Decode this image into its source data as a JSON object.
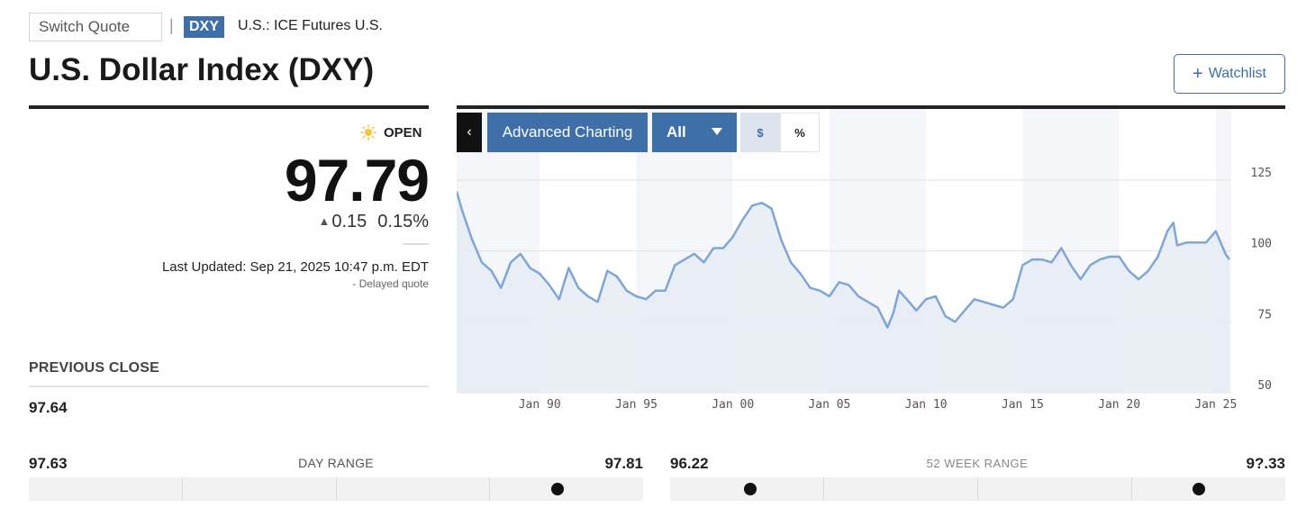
{
  "header": {
    "switch_quote_label": "Switch Quote",
    "separator": "|",
    "ticker": "DXY",
    "exchange": "U.S.: ICE Futures U.S.",
    "title": "U.S. Dollar Index (DXY)",
    "watchlist_plus": "+",
    "watchlist_label": "Watchlist"
  },
  "quote": {
    "market_status": "OPEN",
    "price": "97.79",
    "change": "0.15",
    "change_percent": "0.15%",
    "last_updated": "Last Updated: Sep 21, 2025 10:47 p.m. EDT",
    "delayed": "- Delayed quote",
    "previous_close_label": "PREVIOUS CLOSE",
    "previous_close": "97.64"
  },
  "chart_toolbar": {
    "collapse": "‹",
    "advanced_charting": "Advanced Charting",
    "range": "All",
    "dollar": "$",
    "percent": "%"
  },
  "day_range": {
    "low": "97.63",
    "label": "DAY RANGE",
    "high": "97.81",
    "position": 0.86
  },
  "week52_range": {
    "low": "96.22",
    "label": "52 WEEK RANGE",
    "high": "9?.33",
    "position_low_marker": 0.13,
    "position": 0.86
  },
  "colors": {
    "accent": "#3f6fa8",
    "line": "#7fa6d6",
    "area": "#e6ecf5"
  },
  "icons": {
    "status": "sun-icon",
    "range_caret": "chevron-down-icon"
  },
  "chart_data": {
    "type": "area",
    "x_ticks": [
      "Jan 90",
      "Jan 95",
      "Jan 00",
      "Jan 05",
      "Jan 10",
      "Jan 15",
      "Jan 20",
      "Jan 25"
    ],
    "y_ticks": [
      125,
      100,
      75,
      50
    ],
    "ylim": [
      50,
      125
    ],
    "xlim": [
      1985.7,
      2025.8
    ],
    "grid": true,
    "series": [
      {
        "x": [
          1985.7,
          1986.0,
          1986.5,
          1987.0,
          1987.5,
          1988.0,
          1988.5,
          1989.0,
          1989.5,
          1990.0,
          1990.5,
          1991.0,
          1991.5,
          1992.0,
          1992.5,
          1993.0,
          1993.5,
          1994.0,
          1994.5,
          1995.0,
          1995.5,
          1996.0,
          1996.5,
          1997.0,
          1997.5,
          1998.0,
          1998.5,
          1999.0,
          1999.5,
          2000.0,
          2000.5,
          2001.0,
          2001.5,
          2002.0,
          2002.5,
          2003.0,
          2003.5,
          2004.0,
          2004.5,
          2005.0,
          2005.5,
          2006.0,
          2006.5,
          2007.0,
          2007.5,
          2008.0,
          2008.3,
          2008.6,
          2009.0,
          2009.5,
          2010.0,
          2010.5,
          2011.0,
          2011.5,
          2012.0,
          2012.5,
          2013.0,
          2013.5,
          2014.0,
          2014.5,
          2015.0,
          2015.5,
          2016.0,
          2016.5,
          2017.0,
          2017.5,
          2018.0,
          2018.5,
          2019.0,
          2019.5,
          2020.0,
          2020.5,
          2021.0,
          2021.5,
          2022.0,
          2022.5,
          2022.8,
          2023.0,
          2023.5,
          2024.0,
          2024.5,
          2025.0,
          2025.5,
          2025.7
        ],
        "y": [
          121,
          114,
          104,
          96,
          93,
          87,
          96,
          99,
          94,
          92,
          88,
          83,
          94,
          87,
          84,
          82,
          93,
          91,
          86,
          84,
          83,
          86,
          86,
          95,
          97,
          99,
          96,
          101,
          101,
          105,
          111,
          116,
          117,
          115,
          104,
          96,
          92,
          87,
          86,
          84,
          89,
          88,
          84,
          82,
          80,
          73,
          78,
          86,
          83,
          79,
          83,
          84,
          77,
          75,
          79,
          83,
          82,
          81,
          80,
          83,
          95,
          97,
          97,
          96,
          101,
          95,
          90,
          95,
          97,
          98,
          98,
          93,
          90,
          93,
          98,
          107,
          110,
          102,
          103,
          103,
          103,
          107,
          99,
          97
        ],
        "name": ""
      }
    ]
  }
}
